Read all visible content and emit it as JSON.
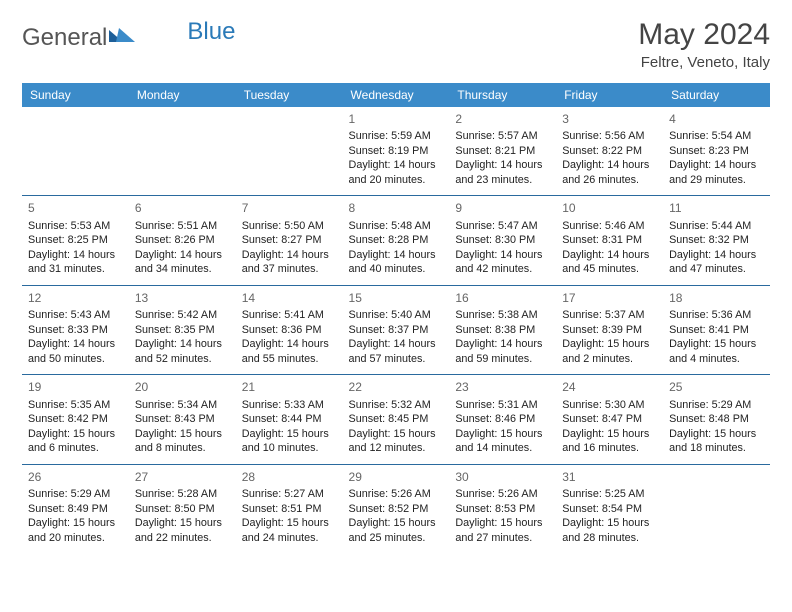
{
  "brand": {
    "part1": "General",
    "part2": "Blue"
  },
  "title": {
    "month": "May 2024",
    "location": "Feltre, Veneto, Italy"
  },
  "colors": {
    "header_bg": "#3b8bc9",
    "header_fg": "#ffffff",
    "row_border": "#2a6a9e",
    "text": "#222222",
    "daynum": "#666666",
    "brand_gray": "#555555",
    "brand_blue": "#2a7ab8"
  },
  "days": [
    "Sunday",
    "Monday",
    "Tuesday",
    "Wednesday",
    "Thursday",
    "Friday",
    "Saturday"
  ],
  "weeks": [
    [
      null,
      null,
      null,
      {
        "n": "1",
        "r": "Sunrise: 5:59 AM",
        "s": "Sunset: 8:19 PM",
        "d1": "Daylight: 14 hours",
        "d2": "and 20 minutes."
      },
      {
        "n": "2",
        "r": "Sunrise: 5:57 AM",
        "s": "Sunset: 8:21 PM",
        "d1": "Daylight: 14 hours",
        "d2": "and 23 minutes."
      },
      {
        "n": "3",
        "r": "Sunrise: 5:56 AM",
        "s": "Sunset: 8:22 PM",
        "d1": "Daylight: 14 hours",
        "d2": "and 26 minutes."
      },
      {
        "n": "4",
        "r": "Sunrise: 5:54 AM",
        "s": "Sunset: 8:23 PM",
        "d1": "Daylight: 14 hours",
        "d2": "and 29 minutes."
      }
    ],
    [
      {
        "n": "5",
        "r": "Sunrise: 5:53 AM",
        "s": "Sunset: 8:25 PM",
        "d1": "Daylight: 14 hours",
        "d2": "and 31 minutes."
      },
      {
        "n": "6",
        "r": "Sunrise: 5:51 AM",
        "s": "Sunset: 8:26 PM",
        "d1": "Daylight: 14 hours",
        "d2": "and 34 minutes."
      },
      {
        "n": "7",
        "r": "Sunrise: 5:50 AM",
        "s": "Sunset: 8:27 PM",
        "d1": "Daylight: 14 hours",
        "d2": "and 37 minutes."
      },
      {
        "n": "8",
        "r": "Sunrise: 5:48 AM",
        "s": "Sunset: 8:28 PM",
        "d1": "Daylight: 14 hours",
        "d2": "and 40 minutes."
      },
      {
        "n": "9",
        "r": "Sunrise: 5:47 AM",
        "s": "Sunset: 8:30 PM",
        "d1": "Daylight: 14 hours",
        "d2": "and 42 minutes."
      },
      {
        "n": "10",
        "r": "Sunrise: 5:46 AM",
        "s": "Sunset: 8:31 PM",
        "d1": "Daylight: 14 hours",
        "d2": "and 45 minutes."
      },
      {
        "n": "11",
        "r": "Sunrise: 5:44 AM",
        "s": "Sunset: 8:32 PM",
        "d1": "Daylight: 14 hours",
        "d2": "and 47 minutes."
      }
    ],
    [
      {
        "n": "12",
        "r": "Sunrise: 5:43 AM",
        "s": "Sunset: 8:33 PM",
        "d1": "Daylight: 14 hours",
        "d2": "and 50 minutes."
      },
      {
        "n": "13",
        "r": "Sunrise: 5:42 AM",
        "s": "Sunset: 8:35 PM",
        "d1": "Daylight: 14 hours",
        "d2": "and 52 minutes."
      },
      {
        "n": "14",
        "r": "Sunrise: 5:41 AM",
        "s": "Sunset: 8:36 PM",
        "d1": "Daylight: 14 hours",
        "d2": "and 55 minutes."
      },
      {
        "n": "15",
        "r": "Sunrise: 5:40 AM",
        "s": "Sunset: 8:37 PM",
        "d1": "Daylight: 14 hours",
        "d2": "and 57 minutes."
      },
      {
        "n": "16",
        "r": "Sunrise: 5:38 AM",
        "s": "Sunset: 8:38 PM",
        "d1": "Daylight: 14 hours",
        "d2": "and 59 minutes."
      },
      {
        "n": "17",
        "r": "Sunrise: 5:37 AM",
        "s": "Sunset: 8:39 PM",
        "d1": "Daylight: 15 hours",
        "d2": "and 2 minutes."
      },
      {
        "n": "18",
        "r": "Sunrise: 5:36 AM",
        "s": "Sunset: 8:41 PM",
        "d1": "Daylight: 15 hours",
        "d2": "and 4 minutes."
      }
    ],
    [
      {
        "n": "19",
        "r": "Sunrise: 5:35 AM",
        "s": "Sunset: 8:42 PM",
        "d1": "Daylight: 15 hours",
        "d2": "and 6 minutes."
      },
      {
        "n": "20",
        "r": "Sunrise: 5:34 AM",
        "s": "Sunset: 8:43 PM",
        "d1": "Daylight: 15 hours",
        "d2": "and 8 minutes."
      },
      {
        "n": "21",
        "r": "Sunrise: 5:33 AM",
        "s": "Sunset: 8:44 PM",
        "d1": "Daylight: 15 hours",
        "d2": "and 10 minutes."
      },
      {
        "n": "22",
        "r": "Sunrise: 5:32 AM",
        "s": "Sunset: 8:45 PM",
        "d1": "Daylight: 15 hours",
        "d2": "and 12 minutes."
      },
      {
        "n": "23",
        "r": "Sunrise: 5:31 AM",
        "s": "Sunset: 8:46 PM",
        "d1": "Daylight: 15 hours",
        "d2": "and 14 minutes."
      },
      {
        "n": "24",
        "r": "Sunrise: 5:30 AM",
        "s": "Sunset: 8:47 PM",
        "d1": "Daylight: 15 hours",
        "d2": "and 16 minutes."
      },
      {
        "n": "25",
        "r": "Sunrise: 5:29 AM",
        "s": "Sunset: 8:48 PM",
        "d1": "Daylight: 15 hours",
        "d2": "and 18 minutes."
      }
    ],
    [
      {
        "n": "26",
        "r": "Sunrise: 5:29 AM",
        "s": "Sunset: 8:49 PM",
        "d1": "Daylight: 15 hours",
        "d2": "and 20 minutes."
      },
      {
        "n": "27",
        "r": "Sunrise: 5:28 AM",
        "s": "Sunset: 8:50 PM",
        "d1": "Daylight: 15 hours",
        "d2": "and 22 minutes."
      },
      {
        "n": "28",
        "r": "Sunrise: 5:27 AM",
        "s": "Sunset: 8:51 PM",
        "d1": "Daylight: 15 hours",
        "d2": "and 24 minutes."
      },
      {
        "n": "29",
        "r": "Sunrise: 5:26 AM",
        "s": "Sunset: 8:52 PM",
        "d1": "Daylight: 15 hours",
        "d2": "and 25 minutes."
      },
      {
        "n": "30",
        "r": "Sunrise: 5:26 AM",
        "s": "Sunset: 8:53 PM",
        "d1": "Daylight: 15 hours",
        "d2": "and 27 minutes."
      },
      {
        "n": "31",
        "r": "Sunrise: 5:25 AM",
        "s": "Sunset: 8:54 PM",
        "d1": "Daylight: 15 hours",
        "d2": "and 28 minutes."
      },
      null
    ]
  ]
}
